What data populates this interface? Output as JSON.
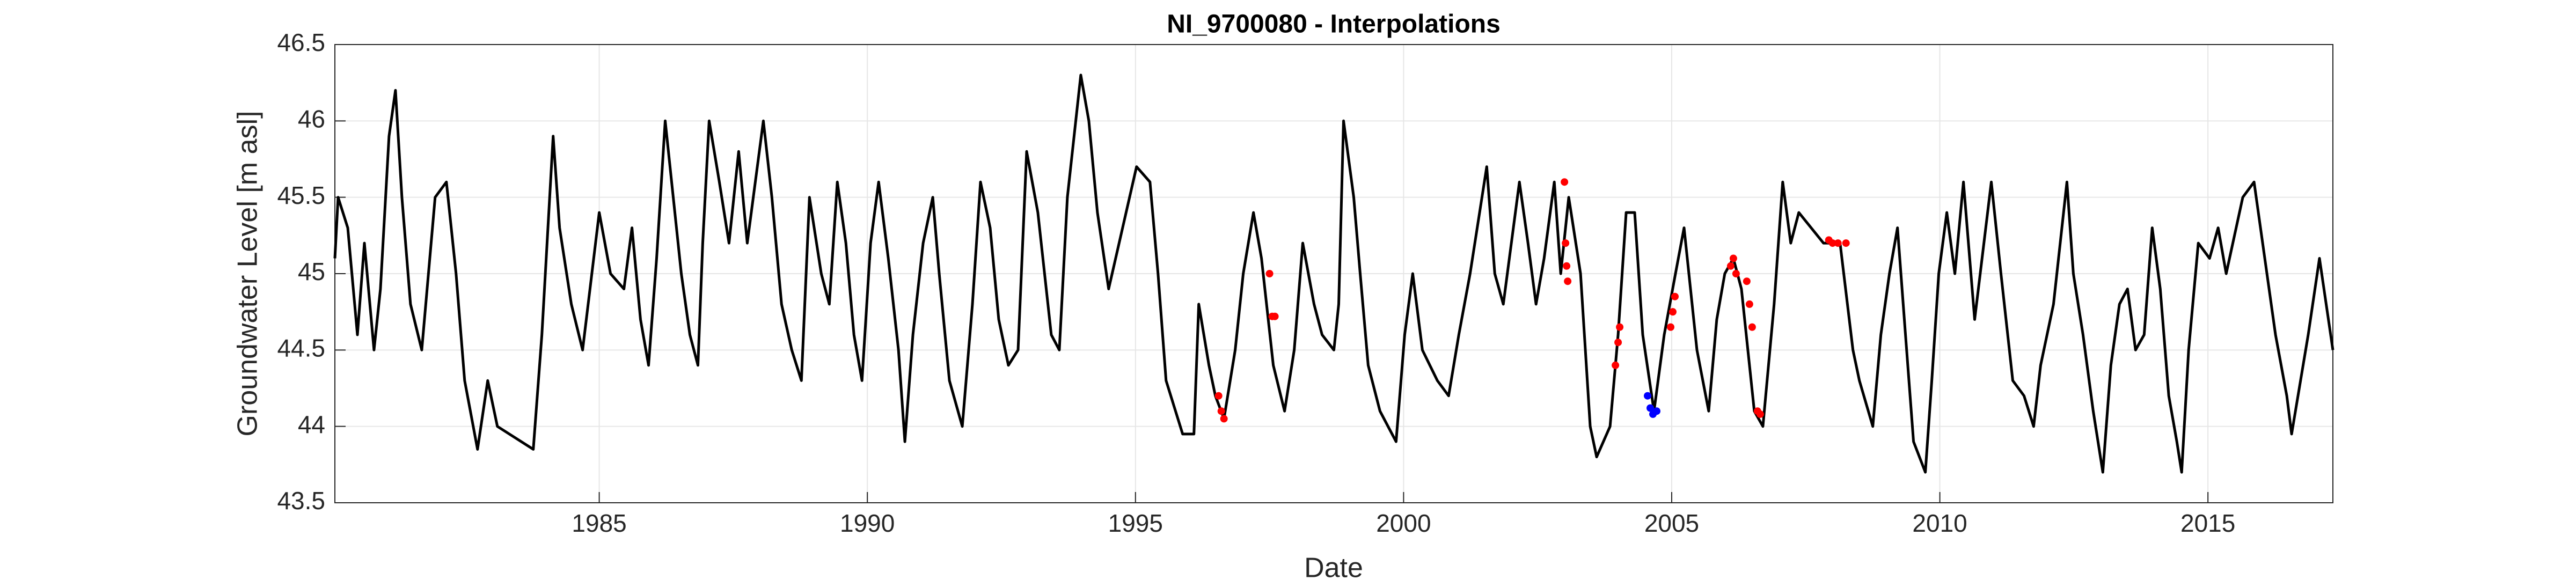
{
  "chart_data": {
    "type": "line",
    "title": "NI_9700080 - Interpolations",
    "x_label": "Date",
    "y_label": "Groundwater Level [m asl]",
    "xlim": [
      1980.07,
      2017.33
    ],
    "ylim": [
      43.5,
      46.5
    ],
    "xticks": [
      1985,
      1990,
      1995,
      2000,
      2005,
      2010,
      2015
    ],
    "yticks": [
      43.5,
      44,
      44.5,
      45,
      45.5,
      46,
      46.5
    ],
    "grid": true,
    "series": [
      {
        "color": "#000000",
        "mode": "line",
        "x": [
          1980.07,
          1980.13,
          1980.31,
          1980.49,
          1980.62,
          1980.8,
          1980.92,
          1981.08,
          1981.2,
          1981.32,
          1981.48,
          1981.69,
          1981.94,
          1982.15,
          1982.33,
          1982.49,
          1982.73,
          1982.92,
          1983.1,
          1983.77,
          1983.93,
          1984.14,
          1984.26,
          1984.48,
          1984.69,
          1985.0,
          1985.21,
          1985.46,
          1985.61,
          1985.77,
          1985.92,
          1986.07,
          1986.23,
          1986.38,
          1986.53,
          1986.69,
          1986.84,
          1986.93,
          1987.05,
          1987.24,
          1987.42,
          1987.6,
          1987.76,
          1988.06,
          1988.22,
          1988.4,
          1988.59,
          1988.77,
          1988.92,
          1989.14,
          1989.29,
          1989.44,
          1989.6,
          1989.75,
          1989.9,
          1990.06,
          1990.21,
          1990.39,
          1990.58,
          1990.7,
          1990.85,
          1991.04,
          1991.22,
          1991.34,
          1991.53,
          1991.77,
          1991.96,
          1992.11,
          1992.29,
          1992.45,
          1992.63,
          1992.81,
          1992.97,
          1993.18,
          1993.43,
          1993.58,
          1993.73,
          1993.98,
          1994.13,
          1994.29,
          1994.5,
          1995.02,
          1995.27,
          1995.42,
          1995.57,
          1995.88,
          1996.09,
          1996.18,
          1996.37,
          1996.49,
          1996.65,
          1996.86,
          1997.01,
          1997.2,
          1997.35,
          1997.57,
          1997.78,
          1997.96,
          1998.12,
          1998.33,
          1998.48,
          1998.7,
          1998.79,
          1998.88,
          1999.07,
          1999.19,
          1999.34,
          1999.56,
          1999.71,
          1999.86,
          2000.02,
          2000.17,
          2000.35,
          2000.63,
          2000.84,
          2001.03,
          2001.24,
          2001.55,
          2001.7,
          2001.86,
          2002.16,
          2002.32,
          2002.47,
          2002.62,
          2002.81,
          2002.93,
          2003.08,
          2003.3,
          2003.48,
          2003.6,
          2003.85,
          2004.0,
          2004.15,
          2004.31,
          2004.46,
          2004.67,
          2004.86,
          2005.07,
          2005.23,
          2005.47,
          2005.69,
          2005.84,
          2005.99,
          2006.15,
          2006.3,
          2006.54,
          2006.7,
          2006.91,
          2007.07,
          2007.22,
          2007.37,
          2007.83,
          2008.14,
          2008.38,
          2008.5,
          2008.75,
          2008.9,
          2009.06,
          2009.21,
          2009.36,
          2009.51,
          2009.73,
          2009.85,
          2009.98,
          2010.13,
          2010.28,
          2010.44,
          2010.65,
          2010.96,
          2011.14,
          2011.36,
          2011.57,
          2011.75,
          2011.88,
          2012.12,
          2012.37,
          2012.49,
          2012.67,
          2012.86,
          2013.04,
          2013.19,
          2013.35,
          2013.5,
          2013.65,
          2013.81,
          2013.96,
          2014.11,
          2014.27,
          2014.42,
          2014.51,
          2014.64,
          2014.82,
          2015.03,
          2015.19,
          2015.34,
          2015.65,
          2015.86,
          2015.98,
          2016.26,
          2016.47,
          2016.56,
          2016.87,
          2017.08,
          2017.33
        ],
        "values": [
          45.1,
          45.5,
          45.3,
          44.6,
          45.2,
          44.5,
          44.9,
          45.9,
          46.2,
          45.5,
          44.8,
          44.5,
          45.5,
          45.6,
          45.0,
          44.3,
          43.85,
          44.3,
          44.0,
          43.85,
          44.6,
          45.9,
          45.3,
          44.8,
          44.5,
          45.4,
          45.0,
          44.9,
          45.3,
          44.7,
          44.4,
          45.1,
          46.0,
          45.5,
          45.0,
          44.6,
          44.4,
          45.2,
          46.0,
          45.6,
          45.2,
          45.8,
          45.2,
          46.0,
          45.5,
          44.8,
          44.5,
          44.3,
          45.5,
          45.0,
          44.8,
          45.6,
          45.2,
          44.6,
          44.3,
          45.2,
          45.6,
          45.1,
          44.5,
          43.9,
          44.6,
          45.2,
          45.5,
          45.0,
          44.3,
          44.0,
          44.8,
          45.6,
          45.3,
          44.7,
          44.4,
          44.5,
          45.8,
          45.4,
          44.6,
          44.5,
          45.5,
          46.3,
          46.0,
          45.4,
          44.9,
          45.7,
          45.6,
          45.0,
          44.3,
          43.95,
          43.95,
          44.8,
          44.4,
          44.2,
          44.05,
          44.5,
          45.0,
          45.4,
          45.1,
          44.4,
          44.1,
          44.5,
          45.2,
          44.8,
          44.6,
          44.5,
          44.8,
          46.0,
          45.5,
          45.0,
          44.4,
          44.1,
          44.0,
          43.9,
          44.6,
          45.0,
          44.5,
          44.3,
          44.2,
          44.6,
          45.0,
          45.7,
          45.0,
          44.8,
          45.6,
          45.2,
          44.8,
          45.1,
          45.6,
          45.0,
          45.5,
          45.0,
          44.0,
          43.8,
          44.0,
          44.6,
          45.4,
          45.4,
          44.6,
          44.1,
          44.6,
          45.0,
          45.3,
          44.5,
          44.1,
          44.7,
          45.0,
          45.1,
          44.9,
          44.1,
          44.0,
          44.8,
          45.6,
          45.2,
          45.4,
          45.2,
          45.2,
          44.5,
          44.3,
          44.0,
          44.6,
          45.0,
          45.3,
          44.6,
          43.9,
          43.7,
          44.3,
          45.0,
          45.4,
          45.0,
          45.6,
          44.7,
          45.6,
          45.0,
          44.3,
          44.2,
          44.0,
          44.4,
          44.8,
          45.6,
          45.0,
          44.6,
          44.1,
          43.7,
          44.4,
          44.8,
          44.9,
          44.5,
          44.6,
          45.3,
          44.9,
          44.2,
          43.9,
          43.7,
          44.5,
          45.2,
          45.1,
          45.3,
          45.0,
          45.5,
          45.6,
          45.3,
          44.6,
          44.2,
          43.95,
          44.6,
          45.1,
          44.5
        ]
      },
      {
        "color": "#ff0000",
        "mode": "markers",
        "x": [
          1996.55,
          1996.6,
          1996.65,
          1997.5,
          1997.55,
          1997.6,
          2003.0,
          2003.02,
          2003.04,
          2003.06,
          2003.95,
          2004.0,
          2004.03,
          2004.98,
          2005.02,
          2005.06,
          2006.1,
          2006.15,
          2006.2,
          2006.4,
          2006.45,
          2006.5,
          2006.6,
          2006.65,
          2007.93,
          2008.0,
          2008.1,
          2008.25
        ],
        "values": [
          44.2,
          44.1,
          44.05,
          45.0,
          44.72,
          44.72,
          45.6,
          45.2,
          45.05,
          44.95,
          44.4,
          44.55,
          44.65,
          44.65,
          44.75,
          44.85,
          45.05,
          45.1,
          45.0,
          44.95,
          44.8,
          44.65,
          44.1,
          44.08,
          45.22,
          45.2,
          45.2,
          45.2
        ]
      },
      {
        "color": "#0000ff",
        "mode": "markers",
        "x": [
          2004.55,
          2004.6,
          2004.65,
          2004.72
        ],
        "values": [
          44.2,
          44.12,
          44.08,
          44.1
        ]
      }
    ]
  }
}
